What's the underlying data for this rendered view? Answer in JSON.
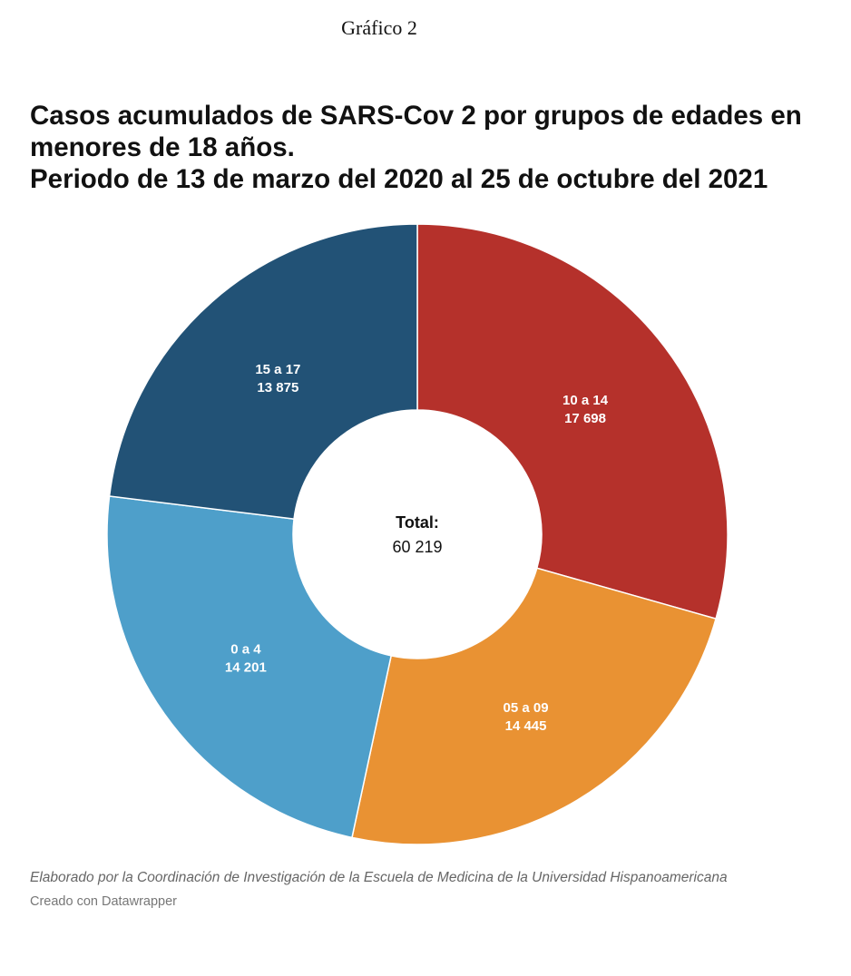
{
  "figure_label": "Gráfico 2",
  "chart_data": {
    "type": "pie",
    "title_lines": [
      "Casos acumulados de SARS-Cov 2 por grupos de edades en",
      "menores de 18 años.",
      "Periodo de 13 de marzo del 2020 al 25 de octubre del 2021"
    ],
    "slices": [
      {
        "label": "10 a 14",
        "value": 17698,
        "value_text": "17 698",
        "color": "#b5312b"
      },
      {
        "label": "05 a 09",
        "value": 14445,
        "value_text": "14 445",
        "color": "#e99233"
      },
      {
        "label": "0 a 4",
        "value": 14201,
        "value_text": "14 201",
        "color": "#4e9fca"
      },
      {
        "label": "15 a 17",
        "value": 13875,
        "value_text": "13 875",
        "color": "#225276"
      }
    ],
    "center": {
      "label": "Total:",
      "value": "60 219"
    }
  },
  "footer": {
    "note": "Elaborado por la Coordinación de Investigación de la Escuela de Medicina de la Universidad Hispanoamericana",
    "credit": "Creado con Datawrapper"
  }
}
